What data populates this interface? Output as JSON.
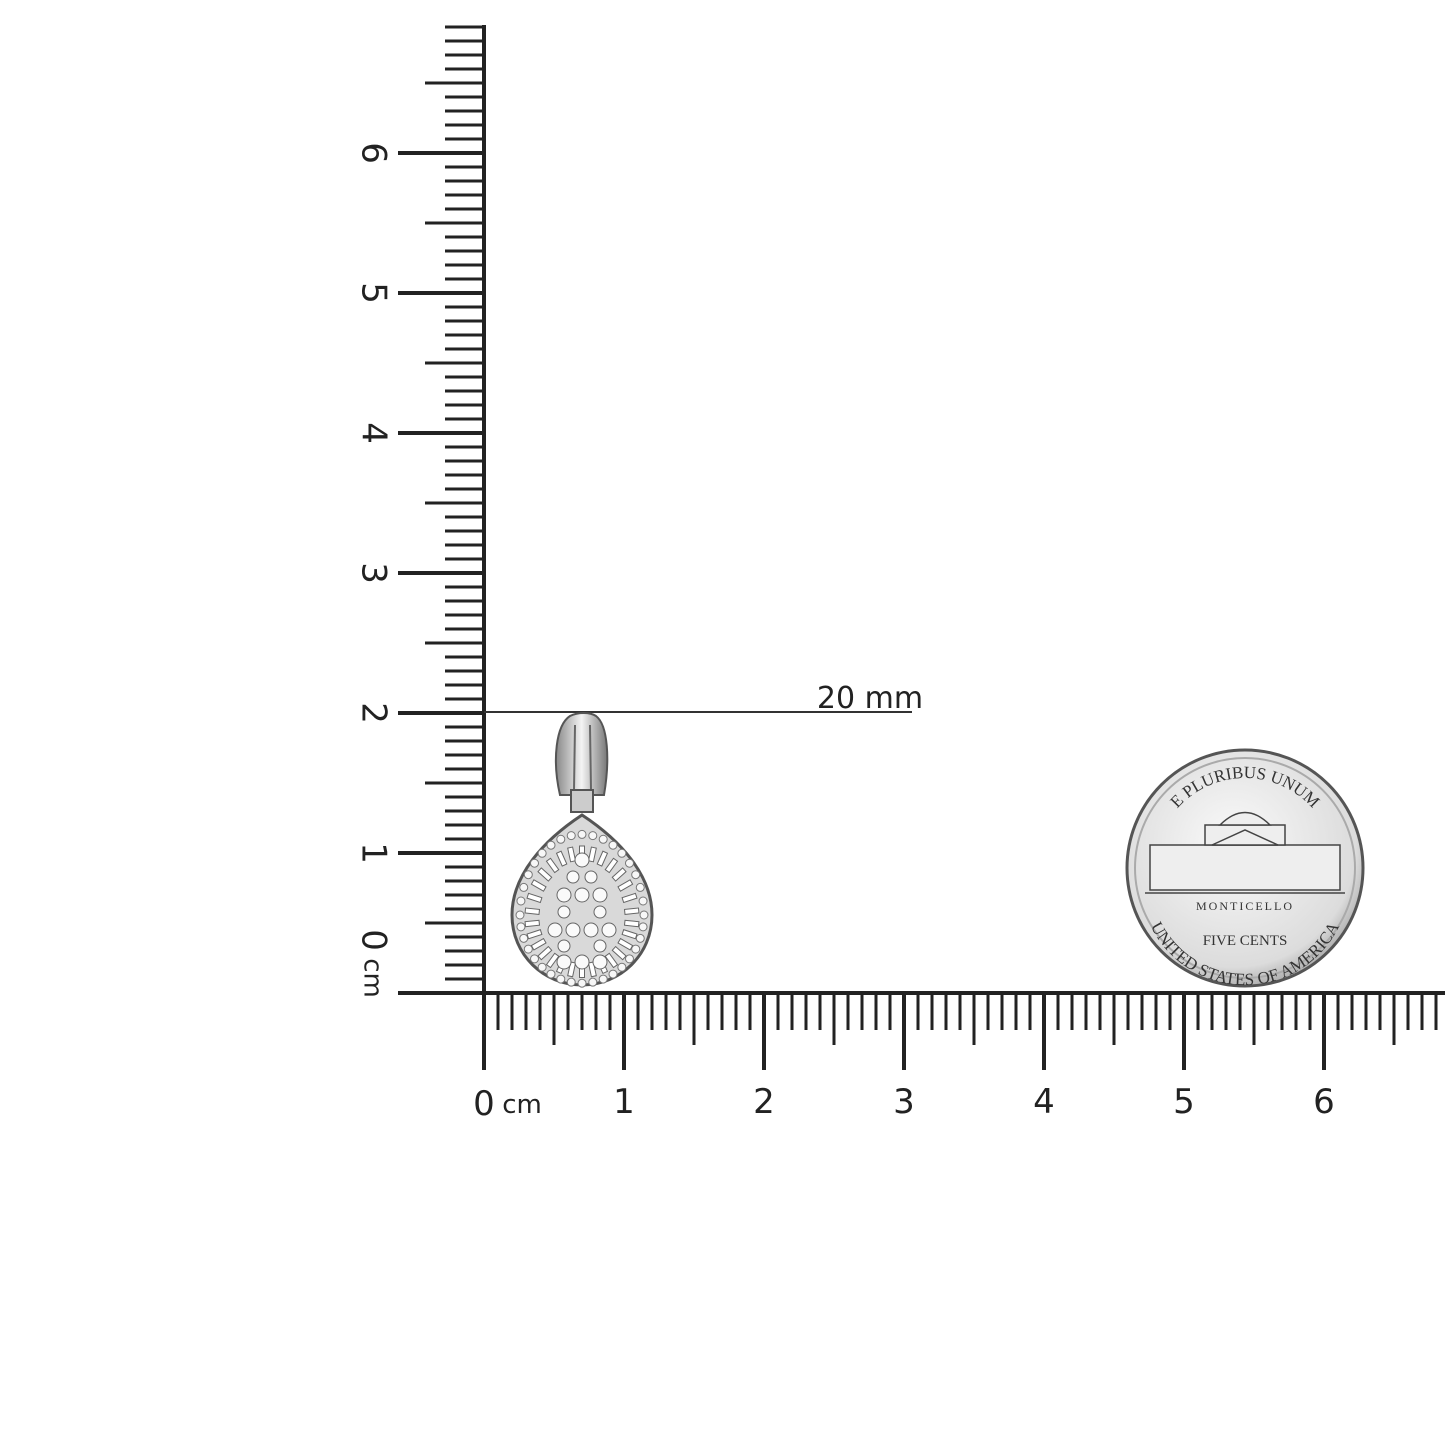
{
  "horizontal_ruler": {
    "zero": "0",
    "unit": "cm",
    "labels": [
      "1",
      "2",
      "3",
      "4",
      "5",
      "6"
    ]
  },
  "vertical_ruler": {
    "zero": "0",
    "unit": "cm",
    "labels": [
      "1",
      "2",
      "3",
      "4",
      "5",
      "6"
    ]
  },
  "measurement": {
    "label": "20 mm"
  },
  "coin": {
    "top": "E PLURIBUS UNUM",
    "building": "MONTICELLO",
    "denomination": "FIVE CENTS",
    "bottom": "UNITED STATES OF AMERICA"
  }
}
